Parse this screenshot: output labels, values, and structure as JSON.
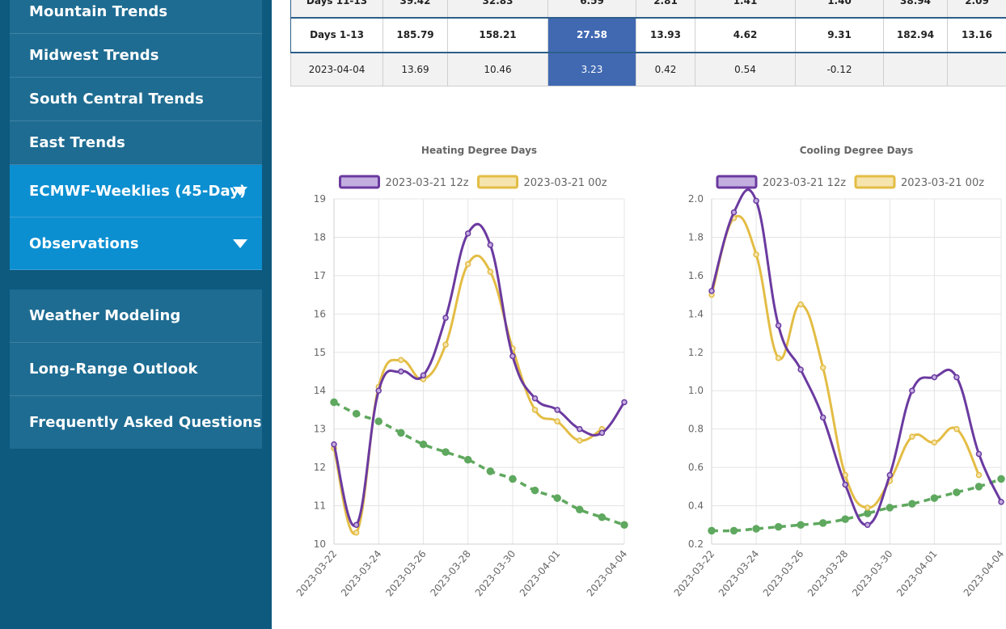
{
  "sidebar": {
    "group1": [
      {
        "label": "Mountain Trends"
      },
      {
        "label": "Midwest Trends"
      },
      {
        "label": "South Central Trends"
      },
      {
        "label": "East Trends"
      },
      {
        "label": "ECMWF-Weeklies (45-Day)"
      },
      {
        "label": "Observations"
      }
    ],
    "group2": [
      {
        "label": "Weather Modeling"
      },
      {
        "label": "Long-Range Outlook"
      },
      {
        "label": "Frequently Asked Questions"
      }
    ]
  },
  "table": {
    "rows": [
      [
        "Days 11-13",
        "39.42",
        "32.83",
        "6.59",
        "2.81",
        "1.41",
        "1.40",
        "38.94",
        "2.09"
      ],
      [
        "Days 1-13",
        "185.79",
        "158.21",
        "27.58",
        "13.93",
        "4.62",
        "9.31",
        "182.94",
        "13.16"
      ],
      [
        "2023-04-04",
        "13.69",
        "10.46",
        "3.23",
        "0.42",
        "0.54",
        "-0.12",
        "",
        ""
      ]
    ]
  },
  "colors": {
    "series_12z": "#6b3aa0",
    "series_00z": "#e3bd45",
    "normal": "#5fa85f",
    "highlight": "#4169b2",
    "sidebar_bg": "#0e5a7f",
    "nav_bg": "#1e6c92",
    "nav_active": "#0b8fd1"
  },
  "chart_data": [
    {
      "type": "line",
      "title": "Heating Degree Days",
      "x": [
        "2023-03-22",
        "2023-03-23",
        "2023-03-24",
        "2023-03-25",
        "2023-03-26",
        "2023-03-27",
        "2023-03-28",
        "2023-03-29",
        "2023-03-30",
        "2023-03-31",
        "2023-04-01",
        "2023-04-02",
        "2023-04-03",
        "2023-04-04"
      ],
      "x_tick_labels": [
        "2023-03-22",
        "2023-03-24",
        "2023-03-26",
        "2023-03-28",
        "2023-03-30",
        "2023-04-01",
        "2023-04-04"
      ],
      "ylim": [
        10,
        19
      ],
      "y_ticks": [
        "10",
        "11",
        "12",
        "13",
        "14",
        "15",
        "16",
        "17",
        "18",
        "19"
      ],
      "series": [
        {
          "name": "2023-03-21 12z",
          "values": [
            12.6,
            10.5,
            14.0,
            14.5,
            14.4,
            15.9,
            18.1,
            17.8,
            14.9,
            13.8,
            13.5,
            13.0,
            12.9,
            13.7
          ]
        },
        {
          "name": "2023-03-21 00z",
          "values": [
            12.5,
            10.3,
            14.1,
            14.8,
            14.3,
            15.2,
            17.3,
            17.1,
            15.1,
            13.5,
            13.2,
            12.7,
            13.0,
            null
          ]
        },
        {
          "name": "",
          "values": [
            13.7,
            13.4,
            13.2,
            12.9,
            12.6,
            12.4,
            12.2,
            11.9,
            11.7,
            11.4,
            11.2,
            10.9,
            10.7,
            10.5
          ]
        }
      ]
    },
    {
      "type": "line",
      "title": "Cooling Degree Days",
      "x": [
        "2023-03-22",
        "2023-03-23",
        "2023-03-24",
        "2023-03-25",
        "2023-03-26",
        "2023-03-27",
        "2023-03-28",
        "2023-03-29",
        "2023-03-30",
        "2023-03-31",
        "2023-04-01",
        "2023-04-02",
        "2023-04-03",
        "2023-04-04"
      ],
      "x_tick_labels": [
        "2023-03-22",
        "2023-03-24",
        "2023-03-26",
        "2023-03-28",
        "2023-03-30",
        "2023-04-01",
        "2023-04-04"
      ],
      "ylim": [
        0.2,
        2.0
      ],
      "y_ticks": [
        "0.2",
        "0.4",
        "0.6",
        "0.8",
        "1.0",
        "1.2",
        "1.4",
        "1.6",
        "1.8",
        "2.0"
      ],
      "series": [
        {
          "name": "2023-03-21 12z",
          "values": [
            1.52,
            1.93,
            1.99,
            1.34,
            1.11,
            0.86,
            0.51,
            0.3,
            0.56,
            1.0,
            1.07,
            1.07,
            0.67,
            0.42
          ]
        },
        {
          "name": "2023-03-21 00z",
          "values": [
            1.5,
            1.9,
            1.71,
            1.17,
            1.45,
            1.12,
            0.56,
            0.39,
            0.53,
            0.76,
            0.73,
            0.8,
            0.56,
            null
          ]
        },
        {
          "name": "",
          "values": [
            0.27,
            0.27,
            0.28,
            0.29,
            0.3,
            0.31,
            0.33,
            0.36,
            0.39,
            0.41,
            0.44,
            0.47,
            0.5,
            0.54
          ]
        }
      ]
    }
  ]
}
